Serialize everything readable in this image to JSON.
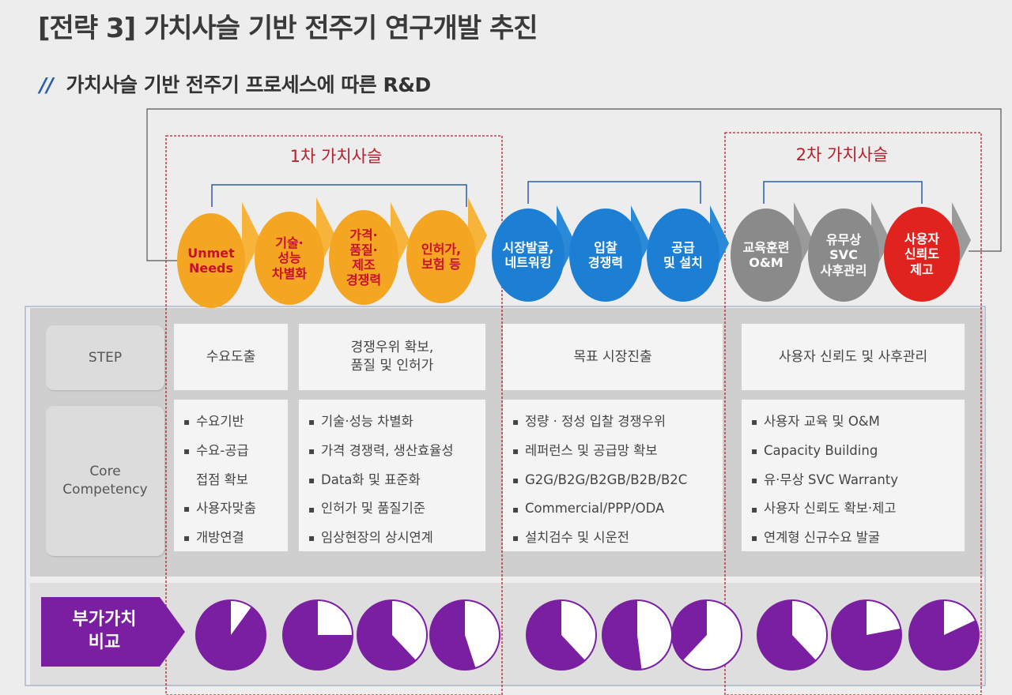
{
  "header": {
    "title": "[전략 3] 가치사슬 기반 전주기 연구개발 추진",
    "subtitle_mark": "//",
    "subtitle": "가치사슬 기반 전주기 프로세스에 따른 R&D"
  },
  "groups": {
    "first": "1차 가치사슬",
    "second": "2차 가치사슬"
  },
  "stages": [
    {
      "label": "Unmet\nNeeds",
      "color": "orange"
    },
    {
      "label": "기술·\n성능\n차별화",
      "color": "orange"
    },
    {
      "label": "가격·\n품질·\n제조\n경쟁력",
      "color": "orange"
    },
    {
      "label": "인허가,\n보험 등",
      "color": "orange"
    },
    {
      "label": "시장발굴,\n네트워킹",
      "color": "blue"
    },
    {
      "label": "입찰\n경쟁력",
      "color": "blue"
    },
    {
      "label": "공급\n및 설치",
      "color": "blue"
    },
    {
      "label": "교육훈련\nO&M",
      "color": "gray"
    },
    {
      "label": "유무상\nSVC\n사후관리",
      "color": "gray"
    },
    {
      "label": "사용자\n신뢰도\n제고",
      "color": "red"
    }
  ],
  "row_labels": {
    "step": "STEP",
    "core": "Core\nCompetency"
  },
  "steps": [
    "수요도출",
    "경쟁우위 확보,\n품질 및 인허가",
    "목표 시장진출",
    "사용자 신뢰도 및 사후관리"
  ],
  "competencies": [
    {
      "items": [
        {
          "text": "수요기반",
          "bullet": true
        },
        {
          "text": "수요-공급",
          "bullet": true
        },
        {
          "text": "접점 확보",
          "bullet": false
        },
        {
          "text": "사용자맞춤",
          "bullet": true
        },
        {
          "text": "개방연결",
          "bullet": true
        }
      ]
    },
    {
      "items": [
        {
          "text": "기술·성능 차별화",
          "bullet": true
        },
        {
          "text": "가격 경쟁력, 생산효율성",
          "bullet": true
        },
        {
          "text": "Data화 및 표준화",
          "bullet": true
        },
        {
          "text": "인허가 및 품질기준",
          "bullet": true
        },
        {
          "text": "임상현장의 상시연계",
          "bullet": true
        }
      ]
    },
    {
      "items": [
        {
          "text": "정량 · 정성 입찰 경쟁우위",
          "bullet": true
        },
        {
          "text": "레퍼런스 및 공급망 확보",
          "bullet": true
        },
        {
          "text": "G2G/B2G/B2GB/B2B/B2C",
          "bullet": true
        },
        {
          "text": "Commercial/PPP/ODA",
          "bullet": true
        },
        {
          "text": "설치검수 및 시운전",
          "bullet": true
        }
      ]
    },
    {
      "items": [
        {
          "text": "사용자 교육 및 O&M",
          "bullet": true
        },
        {
          "text": "Capacity Building",
          "bullet": true
        },
        {
          "text": "유·무상 SVC Warranty",
          "bullet": true
        },
        {
          "text": "사용자 신뢰도 확보·제고",
          "bullet": true
        },
        {
          "text": "연계형 신규수요 발굴",
          "bullet": true
        }
      ]
    }
  ],
  "value_compare": {
    "label": "부가가치\n비교",
    "fractions": [
      0.9,
      0.75,
      0.62,
      0.55,
      0.62,
      0.52,
      0.38,
      0.62,
      0.78,
      0.82
    ]
  },
  "colors": {
    "orange": "#f4a622",
    "blue": "#1d7fd4",
    "gray": "#8a8a8a",
    "red": "#e1231f",
    "purple": "#7b1fa2",
    "frame_blue": "#2c5cab",
    "dash_red": "#b5202a"
  }
}
